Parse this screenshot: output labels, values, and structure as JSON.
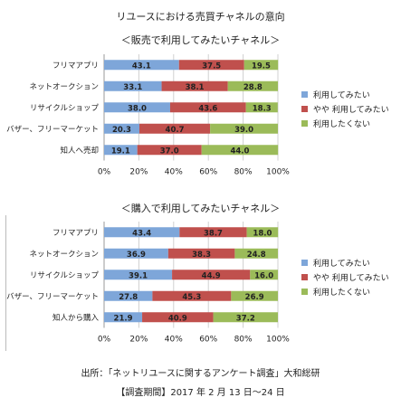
{
  "title": "リユースにおける売買チャネルの意向",
  "chart_data": [
    {
      "type": "bar",
      "orientation": "horizontal",
      "stacked": true,
      "title": "＜販売で利用してみたいチャネル＞",
      "categories": [
        "フリマアプリ",
        "ネットオークション",
        "リサイクルショップ",
        "バザー、フリーマーケット",
        "知人へ売却"
      ],
      "series": [
        {
          "name": "利用してみたい",
          "color": "#7EA6D9",
          "values": [
            43.1,
            33.1,
            38.0,
            20.3,
            19.1
          ]
        },
        {
          "name": "やや 利用してみたい",
          "color": "#C0504D",
          "values": [
            37.5,
            38.1,
            43.6,
            40.7,
            37.0
          ]
        },
        {
          "name": "利用したくない",
          "color": "#9BBB59",
          "values": [
            19.5,
            28.8,
            18.3,
            39.0,
            44.0
          ]
        }
      ],
      "xlim": [
        0,
        100
      ],
      "xticks": [
        "0%",
        "20%",
        "40%",
        "60%",
        "80%",
        "100%"
      ],
      "grid": true,
      "legend": "right"
    },
    {
      "type": "bar",
      "orientation": "horizontal",
      "stacked": true,
      "title": "＜購入で利用してみたいチャネル＞",
      "categories": [
        "フリマアプリ",
        "ネットオークション",
        "リサイクルショップ",
        "バザー、フリーマーケット",
        "知人から購入"
      ],
      "series": [
        {
          "name": "利用してみたい",
          "color": "#7EA6D9",
          "values": [
            43.4,
            36.9,
            39.1,
            27.8,
            21.9
          ]
        },
        {
          "name": "やや 利用してみたい",
          "color": "#C0504D",
          "values": [
            38.7,
            38.3,
            44.9,
            45.3,
            40.9
          ]
        },
        {
          "name": "利用したくない",
          "color": "#9BBB59",
          "values": [
            18.0,
            24.8,
            16.0,
            26.9,
            37.2
          ]
        }
      ],
      "xlim": [
        0,
        100
      ],
      "xticks": [
        "0%",
        "20%",
        "40%",
        "60%",
        "80%",
        "100%"
      ],
      "grid": true,
      "legend": "right"
    }
  ],
  "footer": {
    "source": "出所：「ネットリユースに関するアンケート調査」大和総研",
    "period": "【調査期間】2017 年 2 月 13 日～24 日"
  }
}
